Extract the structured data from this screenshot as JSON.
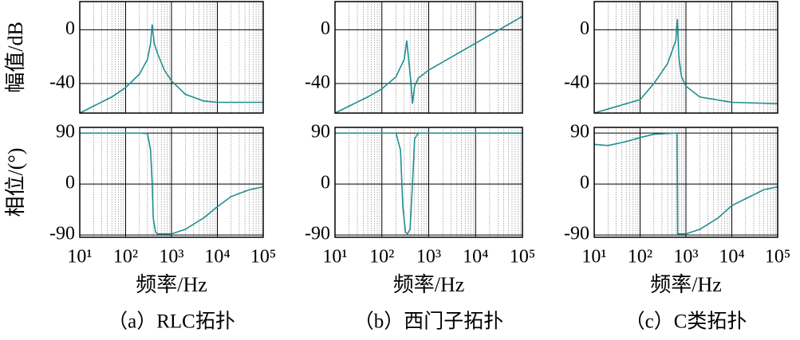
{
  "chart_data": [
    {
      "type": "bode",
      "caption": "（a）RLC拓扑",
      "xlabel": "频率/Hz",
      "log_x": true,
      "grid": true,
      "xlim": [
        10,
        100000
      ],
      "xticks": [
        {
          "value": 10,
          "label": "10¹"
        },
        {
          "value": 100,
          "label": "10²"
        },
        {
          "value": 1000,
          "label": "10³"
        },
        {
          "value": 10000,
          "label": "10⁴"
        },
        {
          "value": 100000,
          "label": "10⁵"
        }
      ],
      "magnitude": {
        "ylabel": "幅值/dB",
        "ylim": [
          -62,
          21
        ],
        "yticks": [
          -40,
          0
        ],
        "x": [
          10,
          50,
          100,
          200,
          300,
          350,
          380,
          420,
          500,
          700,
          1000,
          2000,
          5000,
          10000,
          100000
        ],
        "series": [
          {
            "color": "#1f8f8f",
            "values": [
              -62,
              -50,
              -43,
              -33,
              -22,
              -10,
              4,
              -10,
              -18,
              -30,
              -38,
              -48,
              -53,
              -54,
              -54
            ]
          }
        ]
      },
      "phase": {
        "ylabel": "相位/(°)",
        "ylim": [
          -94,
          100
        ],
        "yticks": [
          90,
          0,
          -90
        ],
        "x": [
          10,
          200,
          300,
          350,
          380,
          400,
          450,
          500,
          1000,
          2000,
          5000,
          10000,
          20000,
          50000,
          100000
        ],
        "series": [
          {
            "color": "#1f8f8f",
            "values": [
              90,
              90,
              89,
              60,
              0,
              -60,
              -85,
              -88,
              -88,
              -80,
              -60,
              -40,
              -22,
              -10,
              -5
            ]
          }
        ]
      }
    },
    {
      "type": "bode",
      "caption": "（b）西门子拓扑",
      "xlabel": "频率/Hz",
      "log_x": true,
      "grid": true,
      "xlim": [
        10,
        100000
      ],
      "xticks": [
        {
          "value": 10,
          "label": "10¹"
        },
        {
          "value": 100,
          "label": "10²"
        },
        {
          "value": 1000,
          "label": "10³"
        },
        {
          "value": 10000,
          "label": "10⁴"
        },
        {
          "value": 100000,
          "label": "10⁵"
        }
      ],
      "magnitude": {
        "ylim": [
          -62,
          21
        ],
        "yticks": [
          -40,
          0
        ],
        "x": [
          10,
          50,
          100,
          200,
          300,
          340,
          380,
          420,
          450,
          500,
          600,
          1000,
          10000,
          100000
        ],
        "series": [
          {
            "color": "#1f8f8f",
            "values": [
              -62,
              -50,
              -44,
              -35,
              -22,
              -8,
              -25,
              -40,
              -55,
              -42,
              -36,
              -30,
              -10,
              10
            ]
          }
        ]
      },
      "phase": {
        "ylim": [
          -94,
          100
        ],
        "yticks": [
          90,
          0,
          -90
        ],
        "x": [
          10,
          200,
          250,
          280,
          320,
          350,
          400,
          450,
          500,
          600,
          100000
        ],
        "series": [
          {
            "color": "#1f8f8f",
            "values": [
              90,
              90,
              60,
              -40,
              -85,
              -88,
              -80,
              0,
              80,
              90,
              90
            ]
          }
        ]
      }
    },
    {
      "type": "bode",
      "caption": "（c）C类拓扑",
      "xlabel": "频率/Hz",
      "log_x": true,
      "grid": true,
      "xlim": [
        10,
        100000
      ],
      "xticks": [
        {
          "value": 10,
          "label": "10¹"
        },
        {
          "value": 100,
          "label": "10²"
        },
        {
          "value": 1000,
          "label": "10³"
        },
        {
          "value": 10000,
          "label": "10⁴"
        },
        {
          "value": 100000,
          "label": "10⁵"
        }
      ],
      "magnitude": {
        "ylim": [
          -62,
          21
        ],
        "yticks": [
          -40,
          0
        ],
        "x": [
          10,
          100,
          200,
          400,
          600,
          650,
          700,
          800,
          1000,
          2000,
          10000,
          100000
        ],
        "series": [
          {
            "color": "#1f8f8f",
            "values": [
              -62,
              -52,
              -40,
              -25,
              -8,
              8,
              -20,
              -35,
              -42,
              -50,
              -54,
              -55
            ]
          }
        ]
      },
      "phase": {
        "ylim": [
          -94,
          100
        ],
        "yticks": [
          90,
          0,
          -90
        ],
        "x": [
          10,
          20,
          50,
          100,
          200,
          640,
          660,
          1000,
          2000,
          5000,
          10000,
          50000,
          100000
        ],
        "series": [
          {
            "color": "#1f8f8f",
            "values": [
              70,
              68,
              75,
              82,
              88,
              90,
              -88,
              -88,
              -80,
              -60,
              -38,
              -10,
              -5
            ]
          }
        ]
      }
    }
  ]
}
